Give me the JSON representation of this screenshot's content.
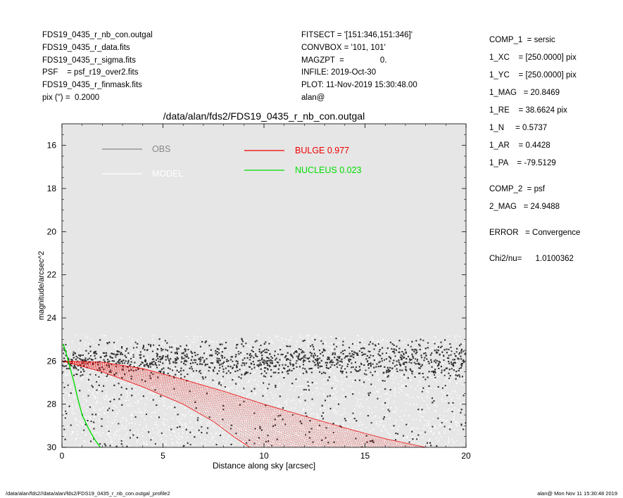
{
  "header_left": [
    "FDS19_0435_r_nb_con.outgal",
    "FDS19_0435_r_data.fits",
    "FDS19_0435_r_sigma.fits",
    "PSF    = psf_r19_over2.fits",
    "FDS19_0435_r_finmask.fits",
    "pix (\") =  0.2000"
  ],
  "header_mid": [
    "FITSECT = '[151:346,151:346]'",
    "CONVBOX = '101, 101'",
    "MAGZPT  =                0.",
    "INFILE: 2019-Oct-30",
    "PLOT: 11-Nov-2019 15:30:48.00",
    "alan@"
  ],
  "header_right": [
    "COMP_1  = sersic",
    "1_XC    = [250.0000] pix",
    "1_YC    = [250.0000] pix",
    "1_MAG   = 20.8469",
    "1_RE    = 38.6624 pix",
    "1_N     = 0.5737",
    "1_AR    = 0.4428",
    "1_PA    = -79.5129",
    "COMP_2  = psf",
    "2_MAG   = 24.9488",
    "ERROR   = Convergence",
    "Chi2/nu=      1.0100362"
  ],
  "footer_left": "/data/alan/fds2//data/alan/fds2/FDS19_0435_r_nb_con.outgal_profile2",
  "footer_right": "alan@  Mon Nov 11 15:30:48 2019",
  "colors": {
    "plot_bg": "#e6e6e6",
    "obs": "#888888",
    "model": "#ffffff",
    "bulge": "#ee0000",
    "nucleus": "#00dd00",
    "obs_points": "#333333"
  },
  "chart_data": {
    "type": "scatter",
    "title": "/data/alan/fds2/FDS19_0435_r_nb_con.outgal",
    "xlabel": "Distance along sky [arcsec]",
    "ylabel": "magnitude/arcsec^2",
    "xlim": [
      0,
      20
    ],
    "ylim": [
      30,
      15
    ],
    "y_inverted": true,
    "xticks": [
      0,
      5,
      10,
      15,
      20
    ],
    "yticks": [
      16,
      18,
      20,
      22,
      24,
      26,
      28,
      30
    ],
    "grid": false,
    "legend": [
      {
        "label": "OBS",
        "color": "#888888"
      },
      {
        "label": "MODEL",
        "color": "#ffffff"
      },
      {
        "label": "BULGE  0.977",
        "color": "#ee0000"
      },
      {
        "label": "NUCLEUS  0.023",
        "color": "#00dd00"
      }
    ],
    "series": [
      {
        "name": "OBS",
        "kind": "scatter",
        "description_range": {
          "x": [
            0,
            20
          ],
          "y_min": 24.6,
          "y_max": 30.0,
          "dense_mean_y": 26.0
        }
      },
      {
        "name": "MODEL",
        "kind": "scatter",
        "description_range": {
          "x": [
            0,
            20
          ],
          "y_min": 24.8,
          "y_max": 30.0
        }
      },
      {
        "name": "BULGE  0.977",
        "kind": "fan",
        "upper_x": [
          0.0,
          2.0,
          4.0,
          6.0,
          8.0,
          10.0,
          12.0,
          14.0,
          16.0,
          18.0
        ],
        "upper_y": [
          26.0,
          26.05,
          26.35,
          26.85,
          27.4,
          28.0,
          28.55,
          29.1,
          29.6,
          30.0
        ],
        "lower_x": [
          0.0,
          2.0,
          4.0,
          6.0,
          7.5,
          8.5,
          9.3
        ],
        "lower_y": [
          26.0,
          26.5,
          27.2,
          28.0,
          28.8,
          29.5,
          30.0
        ]
      },
      {
        "name": "NUCLEUS  0.023",
        "x": [
          0.05,
          0.2,
          0.4,
          0.6,
          0.8,
          1.0,
          1.3,
          1.6,
          1.9
        ],
        "y": [
          25.2,
          25.6,
          26.3,
          27.0,
          27.8,
          28.5,
          29.1,
          29.6,
          30.0
        ]
      }
    ]
  }
}
